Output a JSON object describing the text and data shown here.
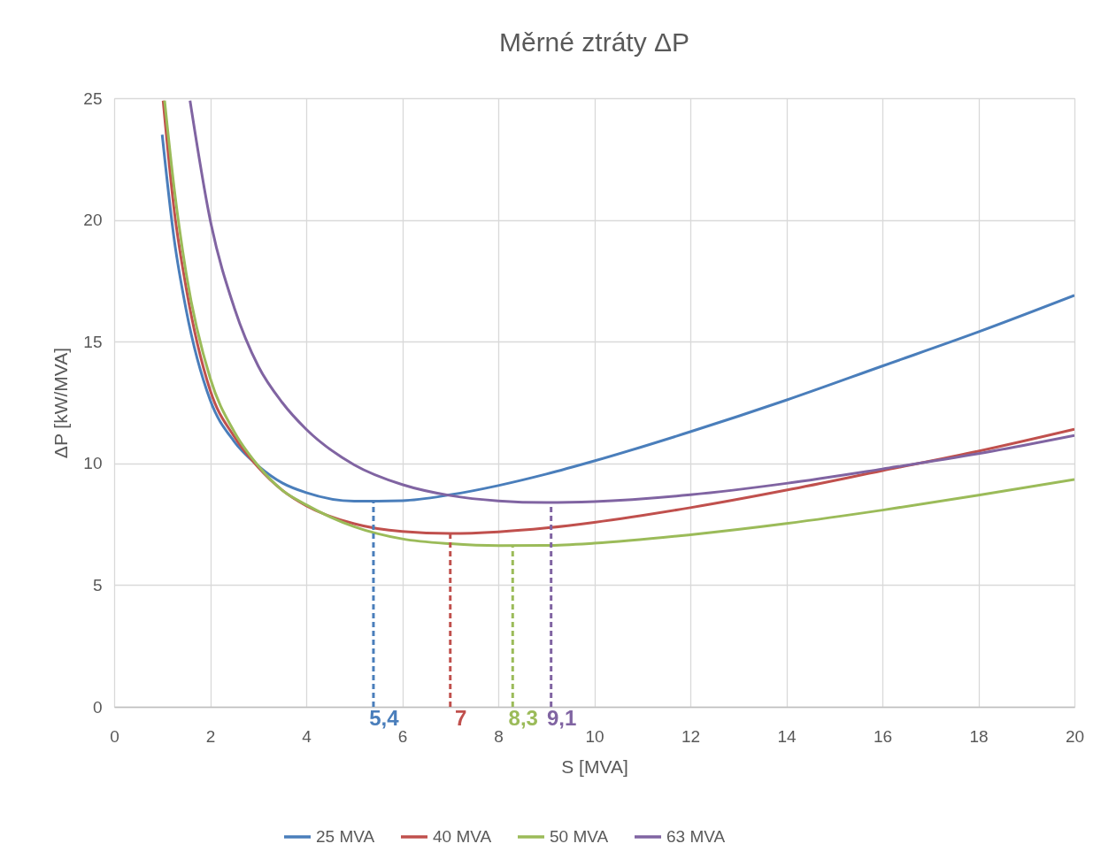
{
  "chart_data": {
    "type": "line",
    "title": "Měrné ztráty ΔP",
    "xlabel": "S [MVA]",
    "ylabel": "ΔP [kW/MVA]",
    "xlim": [
      0,
      20
    ],
    "xticks": [
      0,
      2,
      4,
      6,
      8,
      10,
      12,
      14,
      16,
      18,
      20
    ],
    "ylim": [
      0,
      25
    ],
    "yticks": [
      0,
      5,
      10,
      15,
      20,
      25
    ],
    "grid": true,
    "legend": "bottom",
    "series": [
      {
        "name": "25 MVA",
        "color": "#4a7ebb",
        "x": [
          1,
          1.25,
          1.5,
          2,
          2.5,
          3,
          3.5,
          4,
          5,
          6,
          7,
          8,
          9,
          10,
          12,
          14,
          16,
          18,
          20
        ],
        "values": [
          23.5,
          19.2,
          16.3,
          12.6,
          10.9,
          9.9,
          9.2,
          8.8,
          8.45,
          8.47,
          8.71,
          9.09,
          9.56,
          10.1,
          11.3,
          12.6,
          14.0,
          15.4,
          16.9
        ]
      },
      {
        "name": "40 MVA",
        "color": "#c0504d",
        "x": [
          1.02,
          1.25,
          1.5,
          2,
          2.5,
          3,
          3.5,
          4,
          5,
          6,
          7,
          8,
          9,
          10,
          12,
          14,
          16,
          18,
          20
        ],
        "values": [
          24.9,
          20.4,
          17.2,
          13.0,
          11.1,
          9.84,
          8.9,
          8.26,
          7.52,
          7.2,
          7.12,
          7.19,
          7.35,
          7.58,
          8.18,
          8.9,
          9.7,
          10.5,
          11.4
        ]
      },
      {
        "name": "50 MVA",
        "color": "#9bbb59",
        "x": [
          1.05,
          1.25,
          1.5,
          2,
          2.5,
          3,
          3.5,
          4,
          5,
          6,
          7,
          8,
          9,
          10,
          12,
          14,
          16,
          18,
          20
        ],
        "values": [
          24.9,
          21.3,
          17.8,
          13.5,
          11.3,
          9.9,
          8.9,
          8.3,
          7.4,
          6.9,
          6.7,
          6.62,
          6.63,
          6.72,
          7.07,
          7.53,
          8.08,
          8.69,
          9.34
        ]
      },
      {
        "name": "63 MVA",
        "color": "#8064a2",
        "x": [
          1.58,
          2,
          2.5,
          3,
          3.5,
          4,
          5,
          6,
          7,
          8,
          9,
          10,
          12,
          14,
          16,
          18,
          20
        ],
        "values": [
          24.9,
          20.0,
          16.4,
          14.0,
          12.5,
          11.4,
          9.94,
          9.13,
          8.68,
          8.46,
          8.39,
          8.43,
          8.71,
          9.18,
          9.77,
          10.4,
          11.15
        ]
      }
    ],
    "ref_lines": [
      {
        "axis": "x",
        "value": 5.4,
        "label": "5,4",
        "color": "#4a7ebb",
        "line_style": "dashed"
      },
      {
        "axis": "x",
        "value": 7,
        "label": "7",
        "color": "#c0504d",
        "line_style": "dashed"
      },
      {
        "axis": "x",
        "value": 8.3,
        "label": "8,3",
        "color": "#9bbb59",
        "line_style": "dashed"
      },
      {
        "axis": "x",
        "value": 9.1,
        "label": "9,1",
        "color": "#8064a2",
        "line_style": "dashed"
      }
    ]
  }
}
